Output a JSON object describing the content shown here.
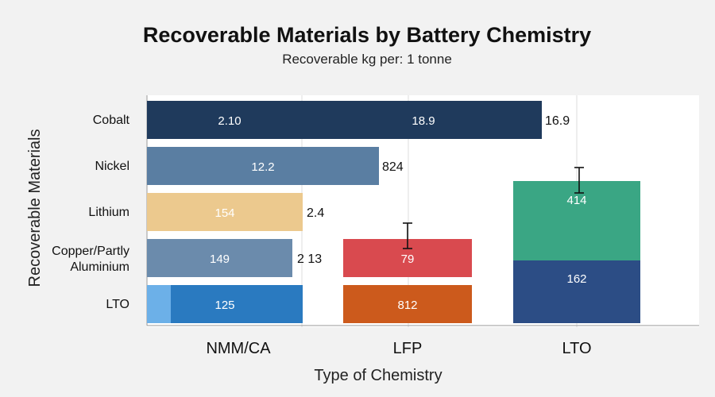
{
  "chart_data": {
    "type": "bar",
    "title": "Recoverable Materials by Battery Chemistry",
    "subtitle": "Recoverable kg per: 1 tonne",
    "ylabel": "Recoverable Materials",
    "xlabel": "Type of Chemistry",
    "categories": [
      "Cobalt",
      "Nickel",
      "Lithium",
      "Copper/Partly Aluminium",
      "LTO"
    ],
    "groups": [
      "NMM/CA",
      "LFP",
      "LTO"
    ],
    "bars": [
      {
        "category": "Cobalt",
        "group": "NMM/CA",
        "value_label": "2.10",
        "span_groups": 1,
        "color": "#1f3a5c"
      },
      {
        "category": "Cobalt",
        "group": "LFP",
        "value_label": "18.9",
        "span_groups": 1,
        "color": "#1f3a5c"
      },
      {
        "category": "Nickel",
        "group": "NMM/CA",
        "value_label": "12.2",
        "span_groups": 1,
        "color": "#5a7ea2"
      },
      {
        "category": "Lithium",
        "group": "NMM/CA",
        "value_label": "154",
        "span_groups": 1,
        "color": "#ecc98e"
      },
      {
        "category": "Copper/Partly Aluminium",
        "group": "NMM/CA",
        "value_label": "149",
        "span_groups": 1,
        "color": "#6b8bac"
      },
      {
        "category": "Copper/Partly Aluminium",
        "group": "LFP",
        "value_label": "79",
        "span_groups": 1,
        "color": "#d94a4f"
      },
      {
        "category": "LTO",
        "group": "NMM/CA",
        "value_label": "125",
        "span_groups": 1,
        "color": "#2a7ac0"
      },
      {
        "category": "LTO",
        "group": "LFP",
        "value_label": "812",
        "span_groups": 1,
        "color": "#cc5a1c"
      }
    ],
    "outside_labels": [
      {
        "category": "Cobalt",
        "text": "16.9"
      },
      {
        "category": "Nickel",
        "text": "824"
      },
      {
        "category": "Lithium",
        "text": "2.4"
      },
      {
        "category": "Copper/Partly Aluminium",
        "text": "2 13"
      }
    ],
    "lto_stack": [
      {
        "name": "top",
        "value_label": "414",
        "color": "#3aa684"
      },
      {
        "name": "bottom",
        "value_label": "162",
        "color": "#2c4d85"
      }
    ],
    "error_bars": [
      "LFP",
      "LTO"
    ],
    "colors": {
      "background": "#f2f2f2",
      "plot_background": "#ffffff",
      "grid": "#dcdcdc"
    }
  }
}
